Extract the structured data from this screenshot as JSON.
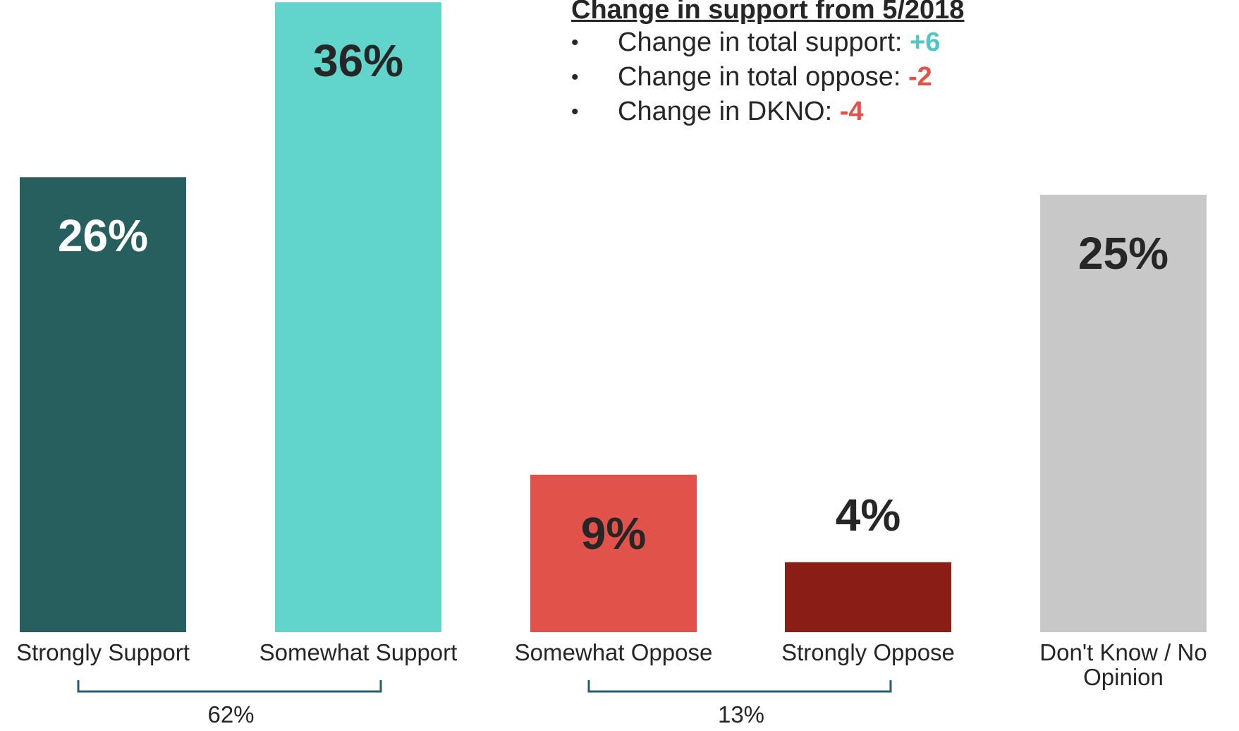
{
  "chart_data": {
    "type": "bar",
    "categories": [
      "Strongly Support",
      "Somewhat Support",
      "Somewhat Oppose",
      "Strongly Oppose",
      "Don't Know / No Opinion"
    ],
    "values": [
      26,
      36,
      9,
      4,
      25
    ],
    "data_labels": [
      "26%",
      "36%",
      "9%",
      "4%",
      "25%"
    ],
    "colors": [
      "#275e5e",
      "#61d4cb",
      "#e1534a",
      "#8a1e17",
      "#c8c8c8"
    ],
    "label_colors": [
      "#ffffff",
      "#262626",
      "#262626",
      "#262626",
      "#262626"
    ],
    "ylim": [
      0,
      36
    ],
    "grid": false,
    "groups": [
      {
        "label": "62%",
        "from": 0,
        "to": 1
      },
      {
        "label": "13%",
        "from": 2,
        "to": 3
      }
    ]
  },
  "changes": {
    "title": "Change in support from 5/2018",
    "items": [
      {
        "text": "Change in total support: ",
        "value": "+6",
        "color": "#52c7c1"
      },
      {
        "text": "Change in total oppose: ",
        "value": "-2",
        "color": "#e1534a"
      },
      {
        "text": "Change in DKNO: ",
        "value": "-4",
        "color": "#e1534a"
      }
    ]
  }
}
